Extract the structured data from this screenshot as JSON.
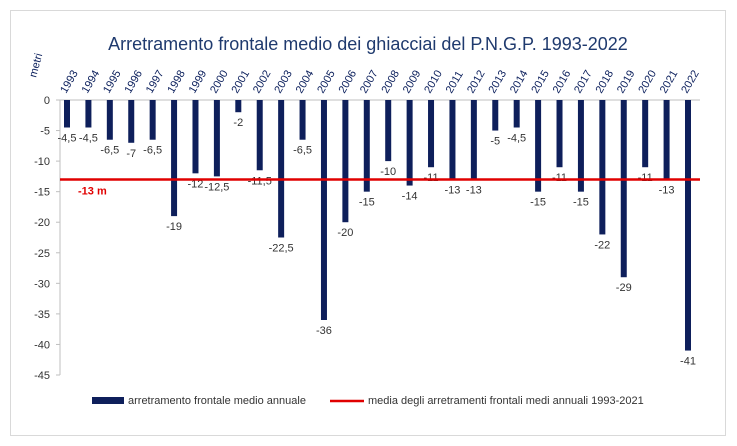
{
  "chart_data": {
    "type": "bar",
    "title": "Arretramento frontale medio dei ghiacciai del P.N.G.P. 1993-2022",
    "ylabel": "metri",
    "xlabel": "",
    "ylim": [
      -45,
      0
    ],
    "yticks": [
      0,
      -5,
      -10,
      -15,
      -20,
      -25,
      -30,
      -35,
      -40,
      -45
    ],
    "grid": false,
    "legend_position": "bottom",
    "categories": [
      "1993",
      "1994",
      "1995",
      "1996",
      "1997",
      "1998",
      "1999",
      "2000",
      "2001",
      "2002",
      "2003",
      "2004",
      "2005",
      "2006",
      "2007",
      "2008",
      "2009",
      "2010",
      "2011",
      "2012",
      "2013",
      "2014",
      "2015",
      "2016",
      "2017",
      "2018",
      "2019",
      "2020",
      "2021",
      "2022"
    ],
    "series": [
      {
        "name": "arretramento frontale medio annuale",
        "type": "bar",
        "color": "#0e1f5b",
        "values": [
          -4.5,
          -4.5,
          -6.5,
          -7,
          -6.5,
          -19,
          -12,
          -12.5,
          -2,
          -11.5,
          -22.5,
          -6.5,
          -36,
          -20,
          -15,
          -10,
          -14,
          -11,
          -13,
          -13,
          -5,
          -4.5,
          -15,
          -11,
          -15,
          -22,
          -29,
          -11,
          -13,
          -41
        ],
        "labels": [
          "-4,5",
          "-4,5",
          "-6,5",
          "-7",
          "-6,5",
          "-19",
          "-12",
          "-12,5",
          "-2",
          "-11,5",
          "-22,5",
          "-6,5",
          "-36",
          "-20",
          "-15",
          "-10",
          "-14",
          "-11",
          "-13",
          "-13",
          "-5",
          "-4,5",
          "-15",
          "-11",
          "-15",
          "-22",
          "-29",
          "-11",
          "-13",
          "-41"
        ]
      },
      {
        "name": "media degli arretramenti frontali medi annuali 1993-2021",
        "type": "line",
        "color": "#e00000",
        "value": -13,
        "label": "-13 m"
      }
    ]
  }
}
